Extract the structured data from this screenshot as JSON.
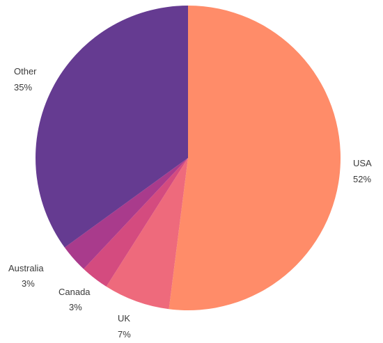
{
  "chart_data": {
    "type": "pie",
    "title": "",
    "start": "12 o'clock",
    "direction": "clockwise",
    "slices": [
      {
        "label": "USA",
        "value": 52,
        "display": "52%",
        "color": "#FF8C69"
      },
      {
        "label": "UK",
        "value": 7,
        "display": "7%",
        "color": "#EE6A7C"
      },
      {
        "label": "Canada",
        "value": 3,
        "display": "3%",
        "color": "#D44B7F"
      },
      {
        "label": "Australia",
        "value": 3,
        "display": "3%",
        "color": "#A93B8C"
      },
      {
        "label": "Other",
        "value": 35,
        "display": "35%",
        "color": "#653B91"
      }
    ]
  }
}
